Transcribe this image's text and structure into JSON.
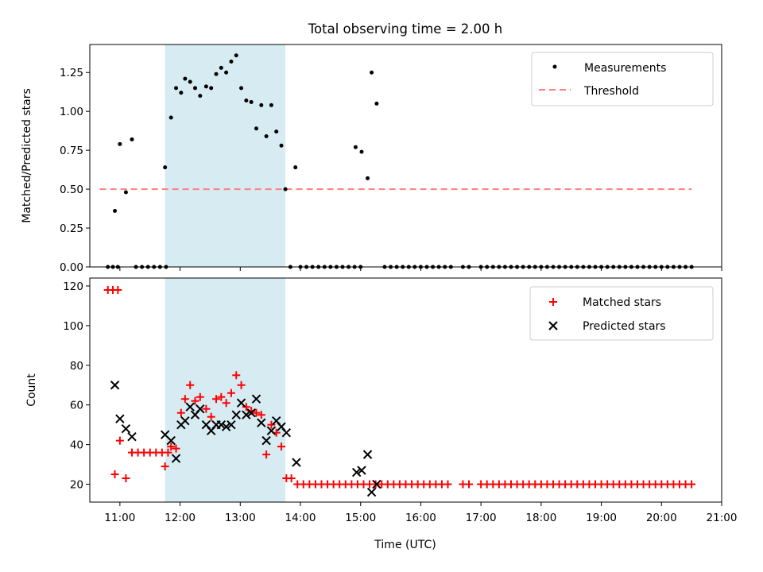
{
  "chart_data": [
    {
      "type": "scatter",
      "title": "Total observing time = 2.00 h",
      "ylabel": "Matched/Predicted stars",
      "ylim": [
        0,
        1.43
      ],
      "xlim": [
        "10:30",
        "21:00"
      ],
      "yticks": [
        "0.00",
        "0.25",
        "0.50",
        "0.75",
        "1.00",
        "1.25"
      ],
      "highlight_span": [
        "11:45",
        "13:45"
      ],
      "highlight_color": "#add8e6",
      "legend_position": "top-right",
      "threshold": {
        "name": "Threshold",
        "value": 0.5,
        "x_range": [
          "10:40",
          "20:30"
        ],
        "color": "#ff7f7f"
      },
      "series": [
        {
          "name": "Measurements",
          "color": "#000000",
          "points": [
            [
              "10:48",
              0
            ],
            [
              "10:53",
              0
            ],
            [
              "10:58",
              0
            ],
            [
              "10:55",
              0.36
            ],
            [
              "11:00",
              0.79
            ],
            [
              "11:06",
              0.48
            ],
            [
              "11:12",
              0.82
            ],
            [
              "11:16",
              0
            ],
            [
              "11:22",
              0
            ],
            [
              "11:28",
              0
            ],
            [
              "11:34",
              0
            ],
            [
              "11:40",
              0
            ],
            [
              "11:46",
              0
            ],
            [
              "11:45",
              0.64
            ],
            [
              "11:51",
              0.96
            ],
            [
              "11:56",
              1.15
            ],
            [
              "12:01",
              1.12
            ],
            [
              "12:05",
              1.21
            ],
            [
              "12:10",
              1.19
            ],
            [
              "12:15",
              1.15
            ],
            [
              "12:20",
              1.1
            ],
            [
              "12:26",
              1.16
            ],
            [
              "12:31",
              1.15
            ],
            [
              "12:36",
              1.24
            ],
            [
              "12:41",
              1.28
            ],
            [
              "12:46",
              1.25
            ],
            [
              "12:51",
              1.32
            ],
            [
              "12:56",
              1.36
            ],
            [
              "13:01",
              1.15
            ],
            [
              "13:06",
              1.07
            ],
            [
              "13:11",
              1.06
            ],
            [
              "13:16",
              0.89
            ],
            [
              "13:21",
              1.04
            ],
            [
              "13:26",
              0.84
            ],
            [
              "13:31",
              1.04
            ],
            [
              "13:36",
              0.87
            ],
            [
              "13:41",
              0.78
            ],
            [
              "13:45",
              0.5
            ],
            [
              "13:50",
              0
            ],
            [
              "13:55",
              0.64
            ],
            [
              "14:00",
              0
            ],
            [
              "14:06",
              0
            ],
            [
              "14:12",
              0
            ],
            [
              "14:18",
              0
            ],
            [
              "14:24",
              0
            ],
            [
              "14:30",
              0
            ],
            [
              "14:36",
              0
            ],
            [
              "14:42",
              0
            ],
            [
              "14:48",
              0
            ],
            [
              "14:54",
              0
            ],
            [
              "15:00",
              0
            ],
            [
              "14:55",
              0.77
            ],
            [
              "15:01",
              0.74
            ],
            [
              "15:07",
              0.57
            ],
            [
              "15:11",
              1.25
            ],
            [
              "15:16",
              1.05
            ],
            [
              "15:24",
              0
            ],
            [
              "15:30",
              0
            ],
            [
              "15:36",
              0
            ],
            [
              "15:42",
              0
            ],
            [
              "15:48",
              0
            ],
            [
              "15:54",
              0
            ],
            [
              "16:00",
              0
            ],
            [
              "16:06",
              0
            ],
            [
              "16:12",
              0
            ],
            [
              "16:18",
              0
            ],
            [
              "16:24",
              0
            ],
            [
              "16:30",
              0
            ],
            [
              "16:42",
              0
            ],
            [
              "16:48",
              0
            ],
            [
              "17:00",
              0
            ],
            [
              "17:06",
              0
            ],
            [
              "17:12",
              0
            ],
            [
              "17:18",
              0
            ],
            [
              "17:24",
              0
            ],
            [
              "17:30",
              0
            ],
            [
              "17:36",
              0
            ],
            [
              "17:42",
              0
            ],
            [
              "17:48",
              0
            ],
            [
              "17:54",
              0
            ],
            [
              "18:00",
              0
            ],
            [
              "18:06",
              0
            ],
            [
              "18:12",
              0
            ],
            [
              "18:18",
              0
            ],
            [
              "18:24",
              0
            ],
            [
              "18:30",
              0
            ],
            [
              "18:36",
              0
            ],
            [
              "18:42",
              0
            ],
            [
              "18:48",
              0
            ],
            [
              "18:54",
              0
            ],
            [
              "19:00",
              0
            ],
            [
              "19:06",
              0
            ],
            [
              "19:12",
              0
            ],
            [
              "19:18",
              0
            ],
            [
              "19:24",
              0
            ],
            [
              "19:30",
              0
            ],
            [
              "19:36",
              0
            ],
            [
              "19:42",
              0
            ],
            [
              "19:48",
              0
            ],
            [
              "19:54",
              0
            ],
            [
              "20:00",
              0
            ],
            [
              "20:06",
              0
            ],
            [
              "20:12",
              0
            ],
            [
              "20:18",
              0
            ],
            [
              "20:24",
              0
            ],
            [
              "20:30",
              0
            ]
          ]
        }
      ]
    },
    {
      "type": "scatter",
      "xlabel": "Time (UTC)",
      "ylabel": "Count",
      "ylim": [
        11,
        124
      ],
      "xlim": [
        "10:30",
        "21:00"
      ],
      "yticks": [
        "20",
        "40",
        "60",
        "80",
        "100",
        "120"
      ],
      "xticks": [
        "11:00",
        "12:00",
        "13:00",
        "14:00",
        "15:00",
        "16:00",
        "17:00",
        "18:00",
        "19:00",
        "20:00",
        "21:00"
      ],
      "highlight_span": [
        "11:45",
        "13:45"
      ],
      "highlight_color": "#add8e6",
      "legend_position": "top-right",
      "series": [
        {
          "name": "Matched stars",
          "marker": "+",
          "color": "#ff0000",
          "points": [
            [
              "10:48",
              118
            ],
            [
              "10:53",
              118
            ],
            [
              "10:58",
              118
            ],
            [
              "10:55",
              25
            ],
            [
              "11:00",
              42
            ],
            [
              "11:06",
              23
            ],
            [
              "11:12",
              36
            ],
            [
              "11:18",
              36
            ],
            [
              "11:24",
              36
            ],
            [
              "11:30",
              36
            ],
            [
              "11:36",
              36
            ],
            [
              "11:42",
              36
            ],
            [
              "11:48",
              36
            ],
            [
              "11:45",
              29
            ],
            [
              "11:51",
              39
            ],
            [
              "11:56",
              38
            ],
            [
              "12:01",
              56
            ],
            [
              "12:05",
              63
            ],
            [
              "12:10",
              70
            ],
            [
              "12:15",
              62
            ],
            [
              "12:20",
              64
            ],
            [
              "12:26",
              58
            ],
            [
              "12:31",
              54
            ],
            [
              "12:36",
              63
            ],
            [
              "12:41",
              64
            ],
            [
              "12:46",
              61
            ],
            [
              "12:51",
              66
            ],
            [
              "12:56",
              75
            ],
            [
              "13:01",
              70
            ],
            [
              "13:06",
              59
            ],
            [
              "13:11",
              57
            ],
            [
              "13:16",
              56
            ],
            [
              "13:21",
              55
            ],
            [
              "13:26",
              35
            ],
            [
              "13:31",
              50
            ],
            [
              "13:36",
              46
            ],
            [
              "13:41",
              39
            ],
            [
              "13:46",
              23
            ],
            [
              "13:51",
              23
            ],
            [
              "13:57",
              20
            ],
            [
              "14:03",
              20
            ],
            [
              "14:09",
              20
            ],
            [
              "14:15",
              20
            ],
            [
              "14:21",
              20
            ],
            [
              "14:27",
              20
            ],
            [
              "14:33",
              20
            ],
            [
              "14:39",
              20
            ],
            [
              "14:45",
              20
            ],
            [
              "14:51",
              20
            ],
            [
              "14:57",
              20
            ],
            [
              "15:03",
              20
            ],
            [
              "15:09",
              20
            ],
            [
              "15:15",
              20
            ],
            [
              "15:21",
              20
            ],
            [
              "15:27",
              20
            ],
            [
              "15:33",
              20
            ],
            [
              "15:39",
              20
            ],
            [
              "15:45",
              20
            ],
            [
              "15:51",
              20
            ],
            [
              "15:57",
              20
            ],
            [
              "16:03",
              20
            ],
            [
              "16:09",
              20
            ],
            [
              "16:15",
              20
            ],
            [
              "16:21",
              20
            ],
            [
              "16:27",
              20
            ],
            [
              "16:42",
              20
            ],
            [
              "16:48",
              20
            ],
            [
              "17:00",
              20
            ],
            [
              "17:06",
              20
            ],
            [
              "17:12",
              20
            ],
            [
              "17:18",
              20
            ],
            [
              "17:24",
              20
            ],
            [
              "17:30",
              20
            ],
            [
              "17:36",
              20
            ],
            [
              "17:42",
              20
            ],
            [
              "17:48",
              20
            ],
            [
              "17:54",
              20
            ],
            [
              "18:00",
              20
            ],
            [
              "18:06",
              20
            ],
            [
              "18:12",
              20
            ],
            [
              "18:18",
              20
            ],
            [
              "18:24",
              20
            ],
            [
              "18:30",
              20
            ],
            [
              "18:36",
              20
            ],
            [
              "18:42",
              20
            ],
            [
              "18:48",
              20
            ],
            [
              "18:54",
              20
            ],
            [
              "19:00",
              20
            ],
            [
              "19:06",
              20
            ],
            [
              "19:12",
              20
            ],
            [
              "19:18",
              20
            ],
            [
              "19:24",
              20
            ],
            [
              "19:30",
              20
            ],
            [
              "19:36",
              20
            ],
            [
              "19:42",
              20
            ],
            [
              "19:48",
              20
            ],
            [
              "19:54",
              20
            ],
            [
              "20:00",
              20
            ],
            [
              "20:06",
              20
            ],
            [
              "20:12",
              20
            ],
            [
              "20:18",
              20
            ],
            [
              "20:24",
              20
            ],
            [
              "20:30",
              20
            ]
          ]
        },
        {
          "name": "Predicted stars",
          "marker": "x",
          "color": "#000000",
          "points": [
            [
              "10:55",
              70
            ],
            [
              "11:00",
              53
            ],
            [
              "11:06",
              48
            ],
            [
              "11:12",
              44
            ],
            [
              "11:45",
              45
            ],
            [
              "11:51",
              42
            ],
            [
              "11:56",
              33
            ],
            [
              "12:01",
              50
            ],
            [
              "12:05",
              52
            ],
            [
              "12:10",
              59
            ],
            [
              "12:15",
              55
            ],
            [
              "12:20",
              58
            ],
            [
              "12:26",
              50
            ],
            [
              "12:31",
              47
            ],
            [
              "12:36",
              50
            ],
            [
              "12:41",
              50
            ],
            [
              "12:46",
              49
            ],
            [
              "12:51",
              50
            ],
            [
              "12:56",
              55
            ],
            [
              "13:01",
              61
            ],
            [
              "13:06",
              55
            ],
            [
              "13:11",
              56
            ],
            [
              "13:16",
              63
            ],
            [
              "13:21",
              51
            ],
            [
              "13:26",
              42
            ],
            [
              "13:31",
              47
            ],
            [
              "13:36",
              52
            ],
            [
              "13:41",
              49
            ],
            [
              "13:46",
              46
            ],
            [
              "13:56",
              31
            ],
            [
              "14:56",
              26
            ],
            [
              "15:01",
              27
            ],
            [
              "15:07",
              35
            ],
            [
              "15:11",
              16
            ],
            [
              "15:16",
              20
            ]
          ]
        }
      ]
    }
  ]
}
